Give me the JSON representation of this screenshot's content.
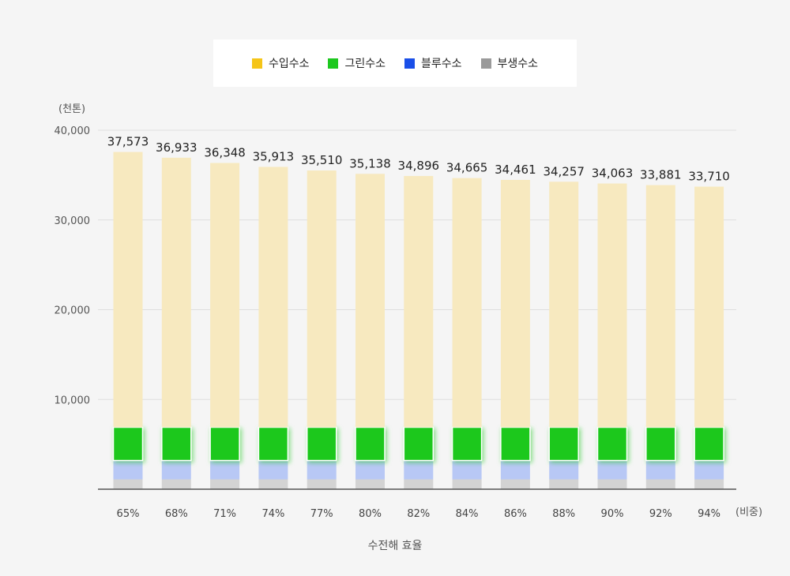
{
  "chart_data": {
    "type": "bar",
    "stacked": true,
    "title": "",
    "y_unit_label": "(천톤)",
    "x_unit_label": "(비중)",
    "xlabel": "수전해 효율",
    "ylabel": "",
    "ylim": [
      0,
      40000
    ],
    "y_ticks": [
      "10,000",
      "20,000",
      "30,000",
      "40,000"
    ],
    "y_tick_values": [
      10000,
      20000,
      30000,
      40000
    ],
    "grid": true,
    "legend_position": "top-center",
    "categories": [
      "65%",
      "68%",
      "71%",
      "74%",
      "77%",
      "80%",
      "82%",
      "84%",
      "86%",
      "88%",
      "90%",
      "92%",
      "94%"
    ],
    "totals": [
      37573,
      36933,
      36348,
      35913,
      35510,
      35138,
      34896,
      34665,
      34461,
      34257,
      34063,
      33881,
      33710
    ],
    "total_labels": [
      "37,573",
      "36,933",
      "36,348",
      "35,913",
      "35,510",
      "35,138",
      "34,896",
      "34,665",
      "34,461",
      "34,257",
      "34,063",
      "33,881",
      "33,710"
    ],
    "series": [
      {
        "name": "부생수소",
        "color": "#d3d3d3",
        "values": [
          1100,
          1100,
          1100,
          1100,
          1100,
          1100,
          1100,
          1100,
          1100,
          1100,
          1100,
          1100,
          1100
        ]
      },
      {
        "name": "블루수소",
        "color": "#b8c8f5",
        "values": [
          2100,
          2100,
          2100,
          2100,
          2100,
          2100,
          2100,
          2100,
          2100,
          2100,
          2100,
          2100,
          2100
        ]
      },
      {
        "name": "그린수소",
        "color": "#1dc81f",
        "values": [
          3700,
          3700,
          3700,
          3700,
          3700,
          3700,
          3700,
          3700,
          3700,
          3700,
          3700,
          3700,
          3700
        ]
      },
      {
        "name": "수입수소",
        "color": "#f7e9bf",
        "values": [
          30673,
          30033,
          29448,
          29013,
          28610,
          28238,
          27996,
          27765,
          27561,
          27357,
          27163,
          26981,
          26810
        ]
      }
    ],
    "legend_order": [
      "수입수소",
      "그린수소",
      "블루수소",
      "부생수소"
    ],
    "legend_colors": [
      "#f5c518",
      "#1dc81f",
      "#1a4fe8",
      "#9a9a9a"
    ]
  }
}
